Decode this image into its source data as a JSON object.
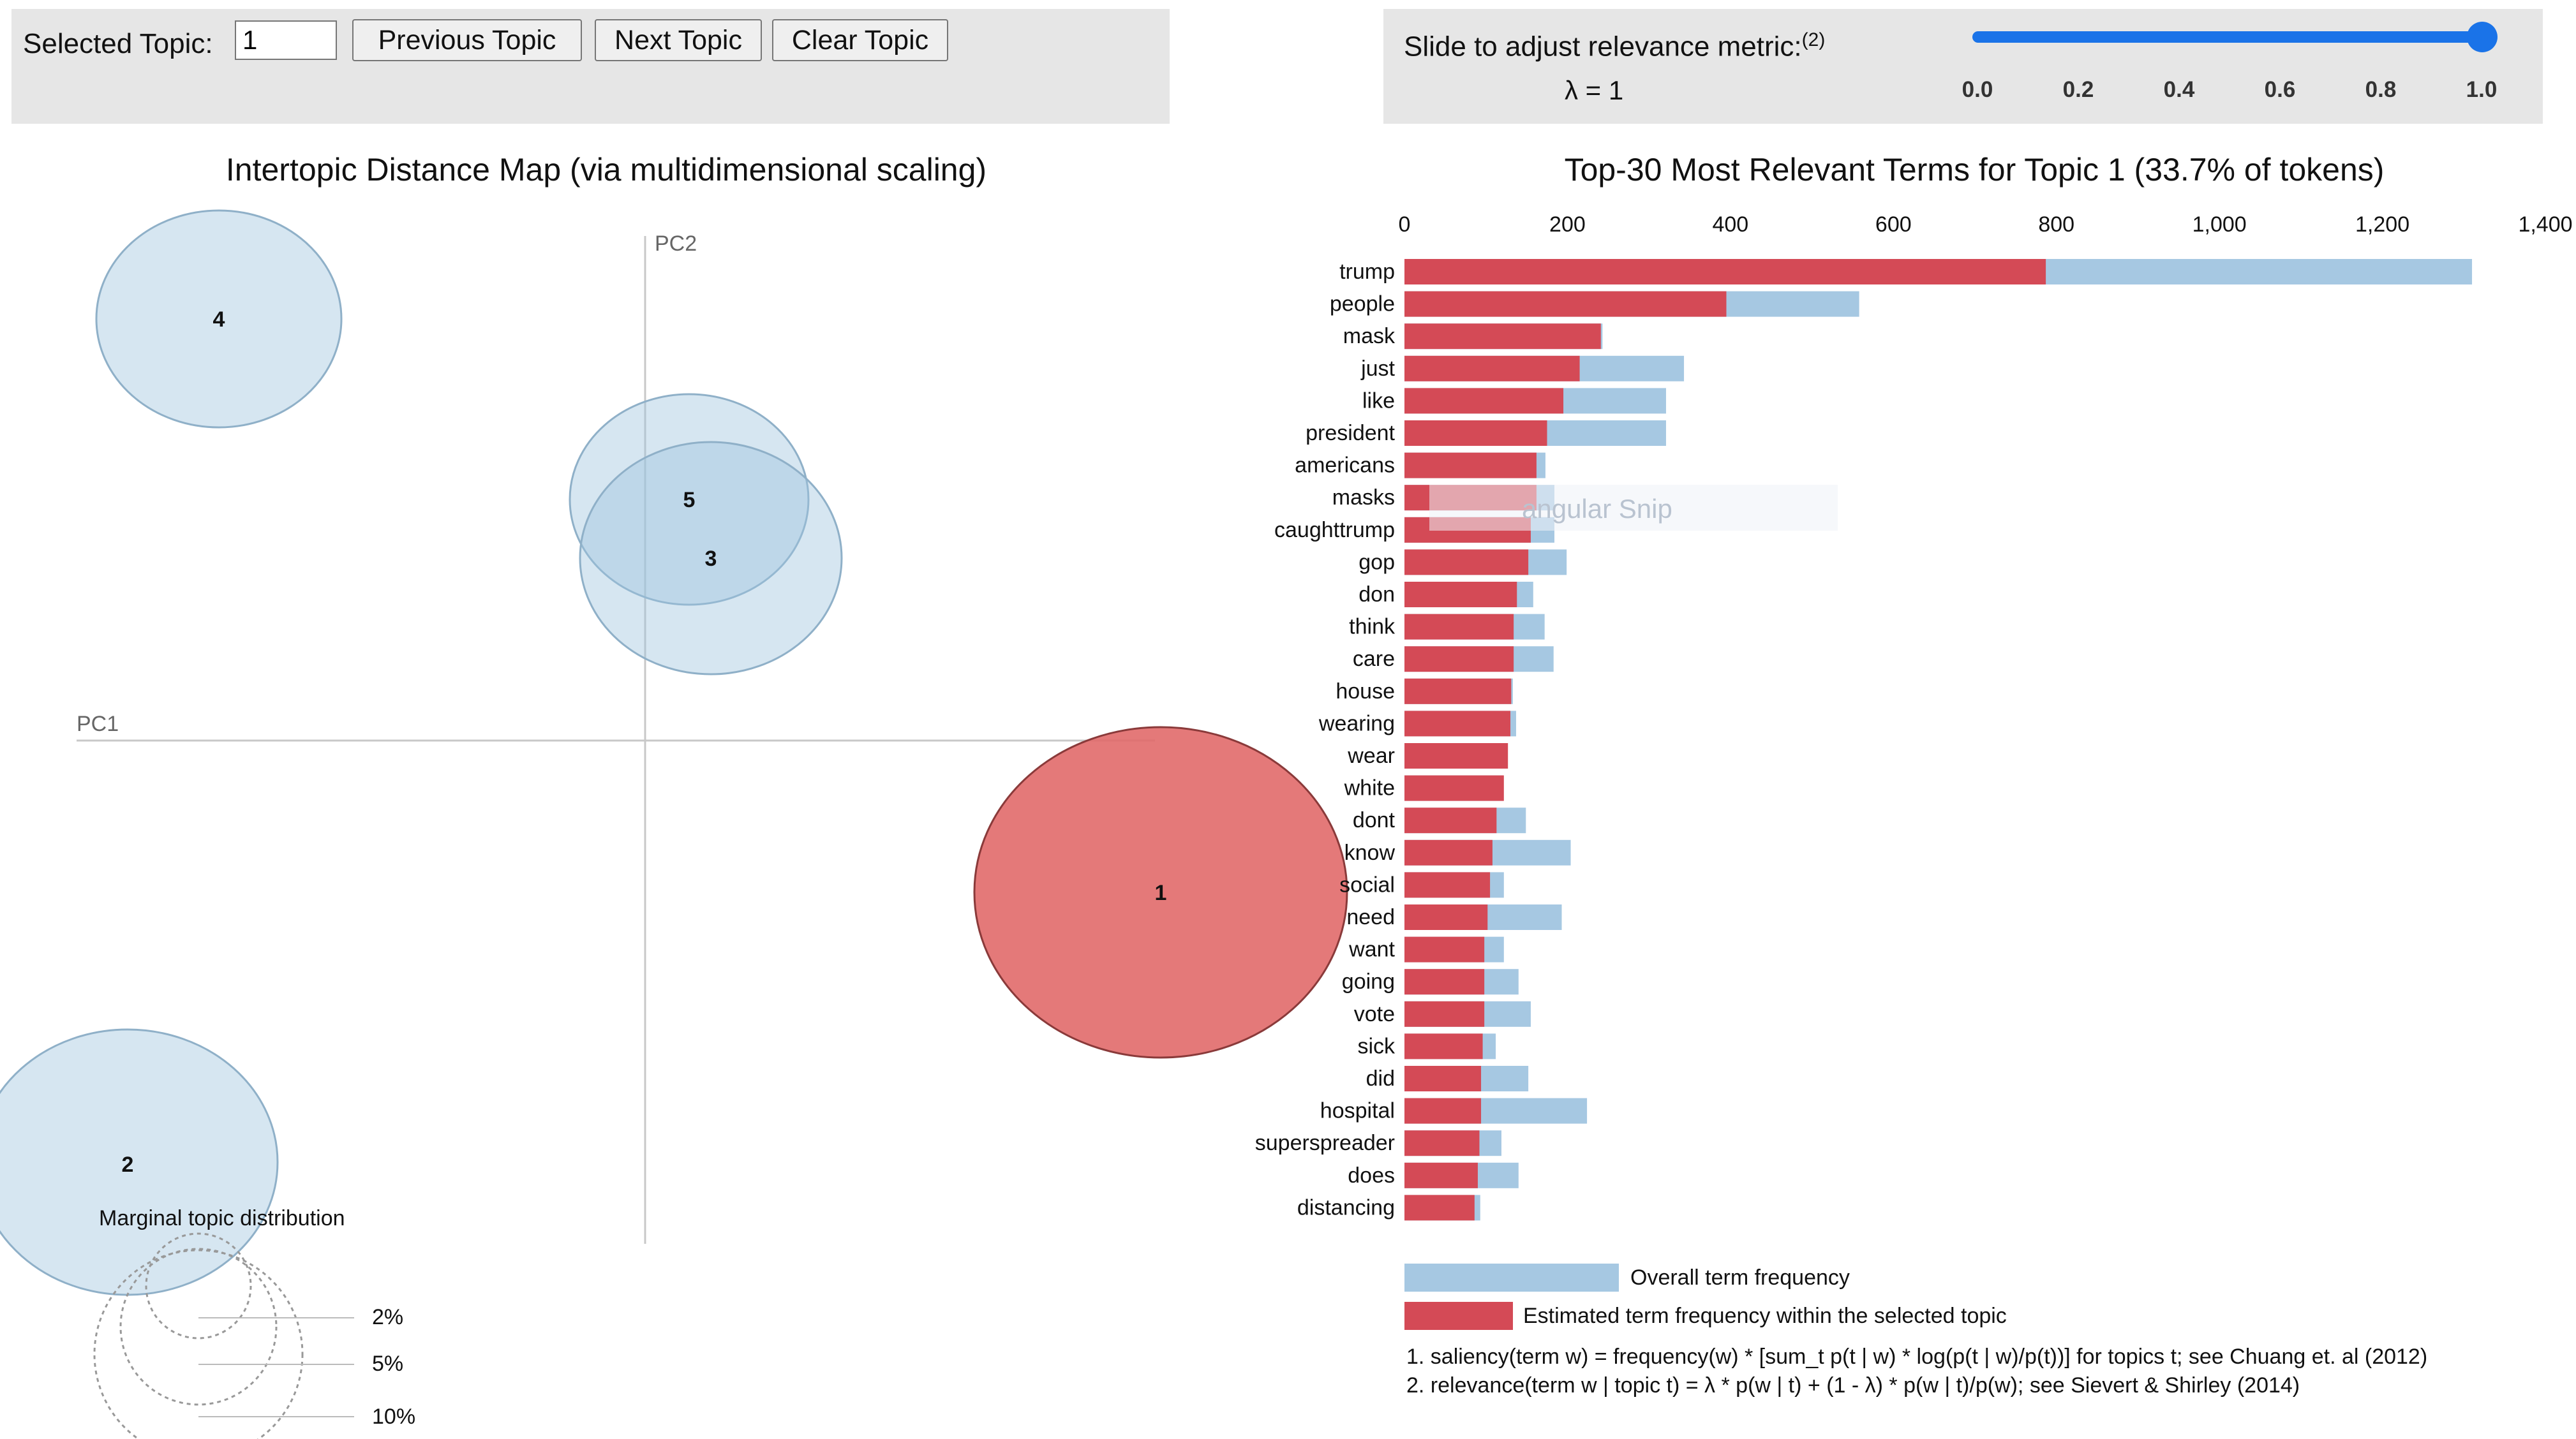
{
  "controls": {
    "topic_label": "Selected Topic:",
    "topic_value": "1",
    "prev_label": "Previous Topic",
    "next_label": "Next Topic",
    "clear_label": "Clear Topic",
    "slider_label": "Slide to adjust relevance metric:",
    "slider_footnote": "(2)",
    "lambda_text": "λ = 1",
    "slider_value": 1.0,
    "slider_ticks": [
      "0.0",
      "0.2",
      "0.4",
      "0.6",
      "0.8",
      "1.0"
    ],
    "slider_color": "#1a73e8"
  },
  "intertopic": {
    "title": "Intertopic Distance Map (via multidimensional scaling)",
    "pc1_label": "PC1",
    "pc2_label": "PC2",
    "topics": [
      {
        "id": "1",
        "selected": true
      },
      {
        "id": "2",
        "selected": false
      },
      {
        "id": "3",
        "selected": false
      },
      {
        "id": "4",
        "selected": false
      },
      {
        "id": "5",
        "selected": false
      }
    ],
    "marginal_title": "Marginal topic distribution",
    "marginal_labels": [
      "2%",
      "5%",
      "10%"
    ],
    "selected_color": "#e06666",
    "unselected_color": "#9ec3dd"
  },
  "chart_data": {
    "type": "bar",
    "title": "Top-30 Most Relevant Terms for Topic 1 (33.7% of tokens)",
    "xlim": [
      0,
      1400
    ],
    "ticks": [
      0,
      200,
      400,
      600,
      800,
      1000,
      1200,
      1400
    ],
    "tick_labels": [
      "0",
      "200",
      "400",
      "600",
      "800",
      "1,000",
      "1,200",
      "1,400"
    ],
    "categories": [
      "trump",
      "people",
      "mask",
      "just",
      "like",
      "president",
      "americans",
      "masks",
      "caughttrump",
      "gop",
      "don",
      "think",
      "care",
      "house",
      "wearing",
      "wear",
      "white",
      "dont",
      "know",
      "social",
      "need",
      "want",
      "going",
      "vote",
      "sick",
      "did",
      "hospital",
      "superspreader",
      "does",
      "distancing"
    ],
    "series": [
      {
        "name": "Overall term frequency",
        "color": "#a6c8e2",
        "values": [
          1310,
          558,
          243,
          343,
          321,
          321,
          173,
          184,
          184,
          199,
          158,
          172,
          183,
          133,
          137,
          121,
          121,
          149,
          204,
          122,
          193,
          122,
          140,
          155,
          112,
          152,
          224,
          119,
          140,
          93
        ]
      },
      {
        "name": "Estimated term frequency within the selected topic",
        "color": "#d44a56",
        "values": [
          787,
          395,
          241,
          215,
          195,
          175,
          162,
          162,
          155,
          152,
          138,
          134,
          134,
          131,
          130,
          127,
          122,
          113,
          108,
          105,
          102,
          98,
          98,
          98,
          96,
          94,
          94,
          92,
          90,
          86
        ]
      }
    ],
    "footnotes": [
      "1. saliency(term w) = frequency(w) * [sum_t p(t | w) * log(p(t | w)/p(t))] for topics t; see Chuang et. al (2012)",
      "2. relevance(term w | topic t) = λ * p(w | t) + (1 - λ) * p(w | t)/p(w); see Sievert & Shirley (2014)"
    ],
    "ghost_text": "angular Snip"
  }
}
